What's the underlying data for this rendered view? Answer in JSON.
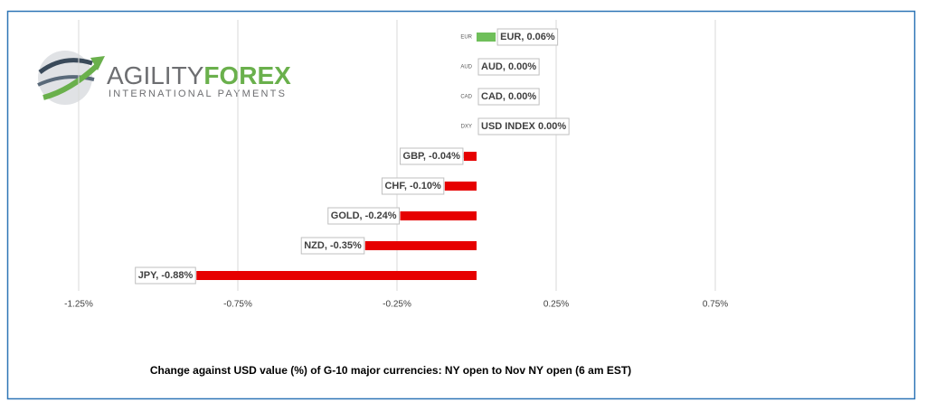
{
  "chart_data": {
    "type": "hbar",
    "title": "Change against  USD value (%)  of  G-10 major currencies: NY open to Nov NY open  (6 am EST)",
    "categories": [
      "EUR",
      "AUD",
      "CAD",
      "DXY",
      "GBP",
      "CHF",
      "GOLD",
      "NZD",
      "JPY"
    ],
    "values": [
      0.06,
      0,
      0,
      0,
      -0.04,
      -0.1,
      -0.24,
      -0.35,
      -0.88
    ],
    "value_labels": [
      "EUR, 0.06%",
      "AUD, 0.00%",
      "CAD, 0.00%",
      "USD INDEX 0.00%",
      "GBP, -0.04%",
      "CHF, -0.10%",
      "GOLD, -0.24%",
      "NZD, -0.35%",
      "JPY, -0.88%"
    ],
    "positive_color": "#6fbf5a",
    "negative_color": "#e60000",
    "xlim": [
      -1.25,
      0.75
    ],
    "xticks": [
      {
        "value": -1.25,
        "label": "-1.25%"
      },
      {
        "value": -0.75,
        "label": "-0.75%"
      },
      {
        "value": -0.25,
        "label": "-0.25%"
      },
      {
        "value": 0.25,
        "label": "0.25%"
      },
      {
        "value": 0.75,
        "label": "0.75%"
      }
    ],
    "grid": true
  },
  "logo": {
    "brand": [
      "AGILITY",
      "FOREX"
    ],
    "tagline": "INTERNATIONAL PAYMENTS"
  }
}
